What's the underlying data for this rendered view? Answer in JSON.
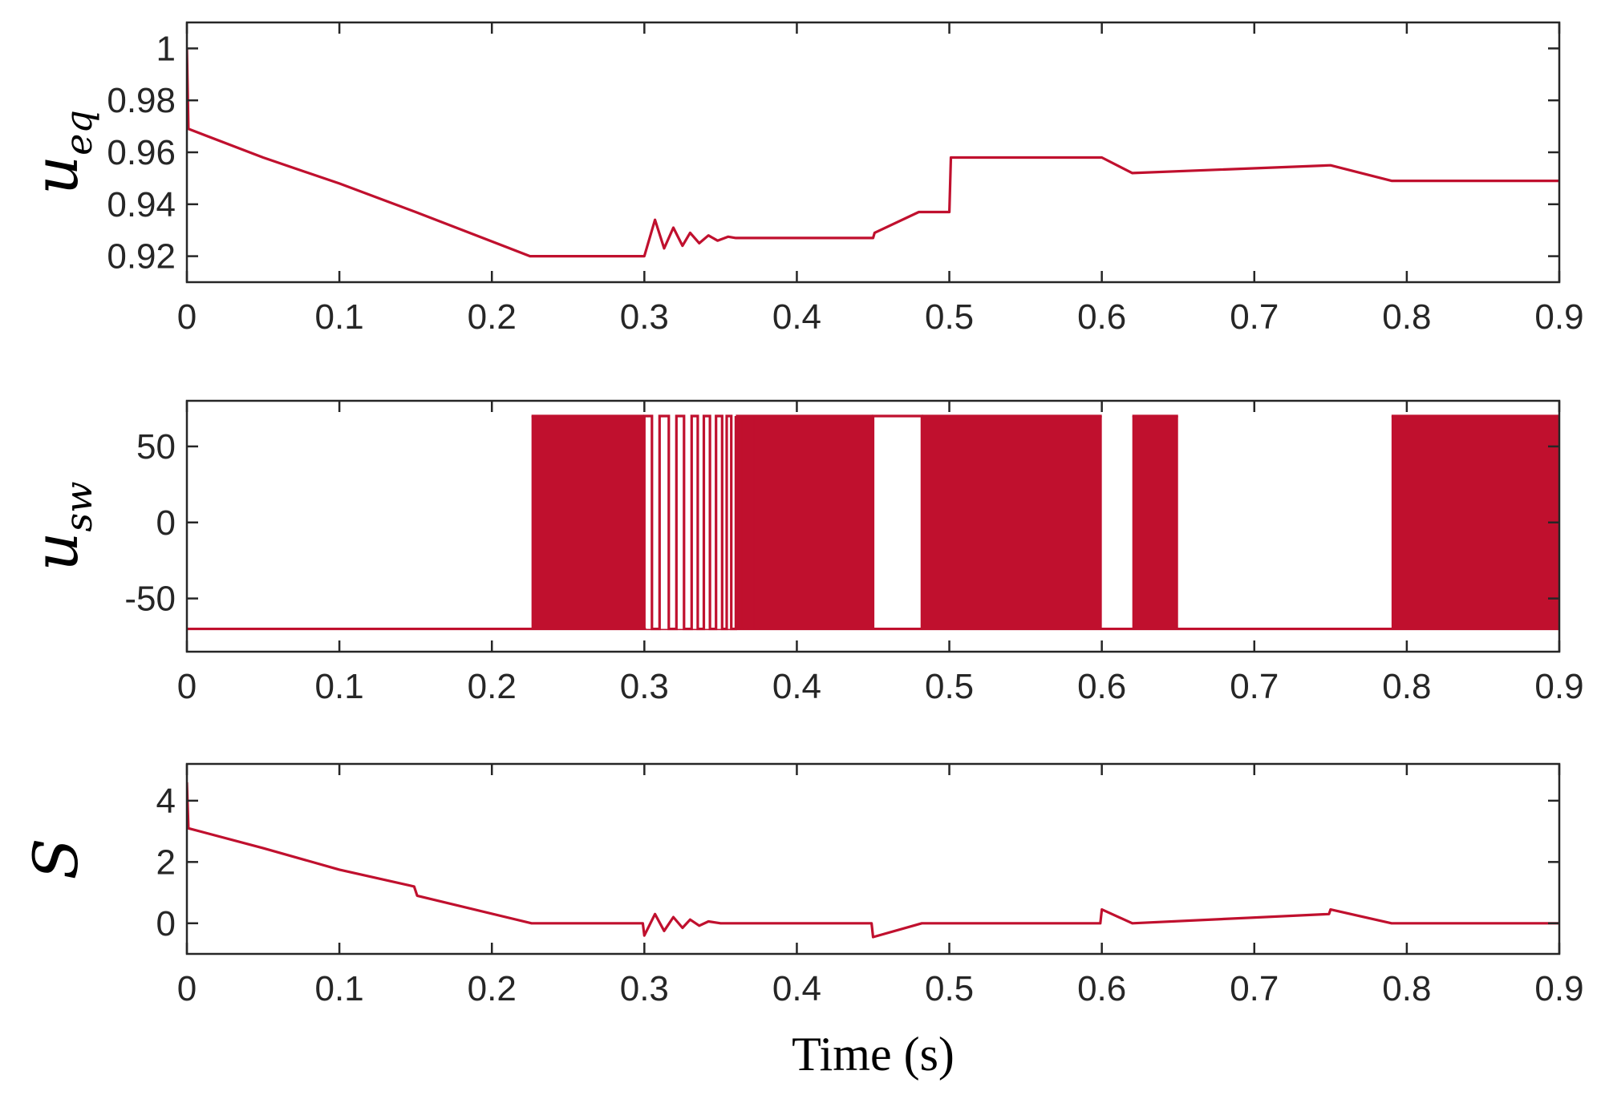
{
  "chart_data": [
    {
      "type": "line",
      "ylabel_main": "u",
      "ylabel_sub": "eq",
      "xlabel": "",
      "xlim": [
        0,
        0.9
      ],
      "ylim": [
        0.91,
        1.01
      ],
      "xticks": [
        "0",
        "0.1",
        "0.2",
        "0.3",
        "0.4",
        "0.5",
        "0.6",
        "0.7",
        "0.8",
        "0.9"
      ],
      "yticks": [
        "0.92",
        "0.94",
        "0.96",
        "0.98",
        "1"
      ],
      "series": [
        {
          "color": "#c0102e",
          "points": [
            [
              0,
              1.0
            ],
            [
              0.001,
              0.969
            ],
            [
              0.05,
              0.958
            ],
            [
              0.1,
              0.948
            ],
            [
              0.15,
              0.937
            ],
            [
              0.225,
              0.92
            ],
            [
              0.3,
              0.92
            ],
            [
              0.301,
              0.922
            ],
            [
              0.307,
              0.934
            ],
            [
              0.313,
              0.923
            ],
            [
              0.319,
              0.931
            ],
            [
              0.325,
              0.924
            ],
            [
              0.33,
              0.929
            ],
            [
              0.336,
              0.925
            ],
            [
              0.342,
              0.928
            ],
            [
              0.348,
              0.926
            ],
            [
              0.355,
              0.9275
            ],
            [
              0.36,
              0.927
            ],
            [
              0.45,
              0.927
            ],
            [
              0.451,
              0.929
            ],
            [
              0.48,
              0.937
            ],
            [
              0.5,
              0.937
            ],
            [
              0.501,
              0.958
            ],
            [
              0.6,
              0.958
            ],
            [
              0.62,
              0.952
            ],
            [
              0.75,
              0.955
            ],
            [
              0.79,
              0.949
            ],
            [
              0.9,
              0.949
            ]
          ]
        }
      ]
    },
    {
      "type": "line",
      "ylabel_main": "u",
      "ylabel_sub": "sw",
      "xlabel": "",
      "xlim": [
        0,
        0.9
      ],
      "ylim": [
        -85,
        80
      ],
      "xticks": [
        "0",
        "0.1",
        "0.2",
        "0.3",
        "0.4",
        "0.5",
        "0.6",
        "0.7",
        "0.8",
        "0.9"
      ],
      "yticks": [
        "-50",
        "0",
        "50"
      ],
      "high": 70,
      "low": -70,
      "switching_bands": [
        [
          0.226,
          0.3
        ],
        [
          0.36,
          0.45
        ],
        [
          0.482,
          0.6
        ],
        [
          0.62,
          0.65
        ],
        [
          0.79,
          0.9
        ]
      ],
      "oscillation_edges": [
        0.3,
        0.305,
        0.31,
        0.316,
        0.321,
        0.326,
        0.331,
        0.335,
        0.339,
        0.343,
        0.347,
        0.351,
        0.354,
        0.357,
        0.36
      ],
      "held_high": [
        [
          0.45,
          0.482
        ]
      ],
      "color": "#c0102e"
    },
    {
      "type": "line",
      "ylabel_main": "S",
      "ylabel_sub": "",
      "xlabel": "Time (s)",
      "xlim": [
        0,
        0.9
      ],
      "ylim": [
        -1,
        5.2
      ],
      "xticks": [
        "0",
        "0.1",
        "0.2",
        "0.3",
        "0.4",
        "0.5",
        "0.6",
        "0.7",
        "0.8",
        "0.9"
      ],
      "yticks": [
        "0",
        "2",
        "4"
      ],
      "series": [
        {
          "color": "#c0102e",
          "points": [
            [
              0,
              4.6
            ],
            [
              0.001,
              3.1
            ],
            [
              0.05,
              2.45
            ],
            [
              0.1,
              1.75
            ],
            [
              0.149,
              1.2
            ],
            [
              0.151,
              0.9
            ],
            [
              0.226,
              0.0
            ],
            [
              0.299,
              0.0
            ],
            [
              0.3,
              -0.4
            ],
            [
              0.307,
              0.3
            ],
            [
              0.313,
              -0.25
            ],
            [
              0.319,
              0.2
            ],
            [
              0.325,
              -0.15
            ],
            [
              0.33,
              0.12
            ],
            [
              0.336,
              -0.08
            ],
            [
              0.342,
              0.06
            ],
            [
              0.35,
              0.0
            ],
            [
              0.449,
              0.0
            ],
            [
              0.45,
              -0.45
            ],
            [
              0.482,
              0.0
            ],
            [
              0.599,
              0.0
            ],
            [
              0.6,
              0.45
            ],
            [
              0.62,
              0.0
            ],
            [
              0.749,
              0.3
            ],
            [
              0.75,
              0.45
            ],
            [
              0.79,
              0.0
            ],
            [
              0.9,
              0.0
            ]
          ]
        }
      ]
    }
  ]
}
